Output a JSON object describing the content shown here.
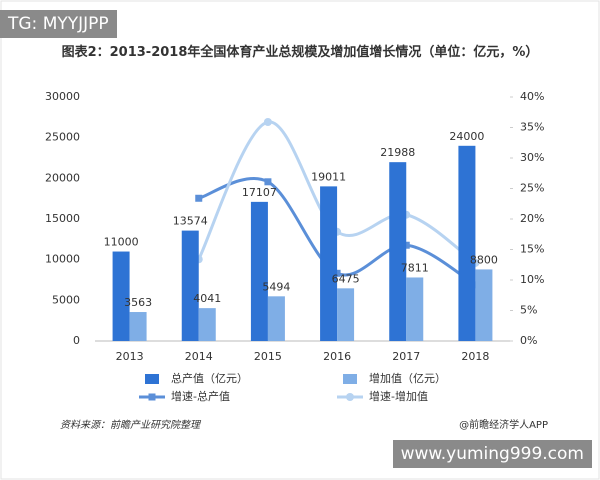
{
  "watermarks": [
    "TG: MYYJJPP",
    "www.yuming999.com"
  ],
  "chart_data": {
    "type": "bar-line",
    "title": "图表2：2013-2018年全国体育产业总规模及增加值增长情况（单位：亿元，%）",
    "categories": [
      "2013",
      "2014",
      "2015",
      "2016",
      "2017",
      "2018"
    ],
    "series": [
      {
        "name": "总产值（亿元）",
        "type": "bar",
        "color": "#2e73d4",
        "values": [
          11000,
          13574,
          17107,
          19011,
          21988,
          24000
        ]
      },
      {
        "name": "增加值（亿元）",
        "type": "bar",
        "color": "#7faee6",
        "values": [
          3563,
          4041,
          5494,
          6475,
          7811,
          8800
        ]
      },
      {
        "name": "增速-总产值",
        "type": "line",
        "axis": "y2",
        "color": "#5b8fd8",
        "marker": "square",
        "values": [
          null,
          23.4,
          26.1,
          11.1,
          15.7,
          9.2
        ]
      },
      {
        "name": "增速-增加值",
        "type": "line",
        "axis": "y2",
        "color": "#b7d3f1",
        "marker": "circle",
        "values": [
          null,
          13.4,
          35.9,
          17.9,
          20.7,
          12.8
        ]
      }
    ],
    "ylim": [
      0,
      30000
    ],
    "yticks": [
      0,
      5000,
      10000,
      15000,
      20000,
      25000,
      30000
    ],
    "y2lim": [
      0,
      40
    ],
    "y2ticks": [
      {
        "value": 0,
        "label": "0%"
      },
      {
        "value": 5,
        "label": "5%"
      },
      {
        "value": 10,
        "label": "10%"
      },
      {
        "value": 15,
        "label": "15%"
      },
      {
        "value": 20,
        "label": "20%"
      },
      {
        "value": 25,
        "label": "25%"
      },
      {
        "value": 30,
        "label": "30%"
      },
      {
        "value": 35,
        "label": "35%"
      },
      {
        "value": 40,
        "label": "40%"
      }
    ],
    "grid": false,
    "legend": "bottom",
    "source": "资料来源：前瞻产业研究院整理",
    "credit": "@前瞻经济学人APP"
  }
}
